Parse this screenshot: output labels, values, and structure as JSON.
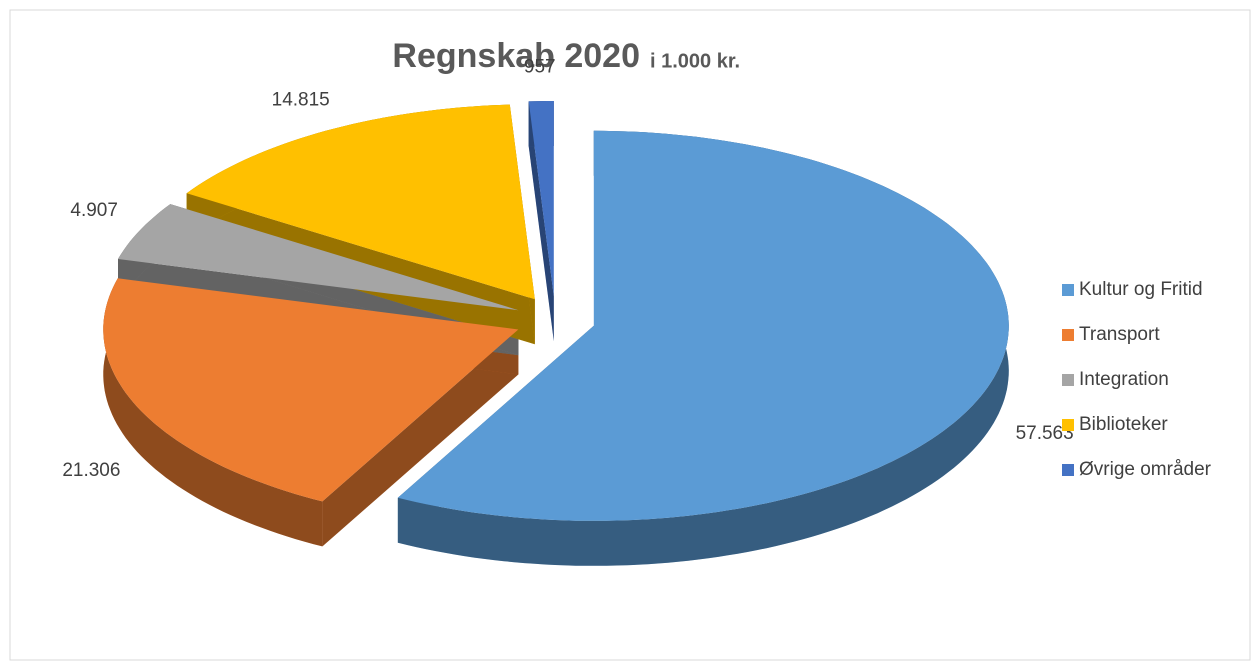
{
  "chart_data": {
    "type": "pie3d",
    "title": "Regnskab 2020",
    "subtitle": "i 1.000 kr.",
    "categories": [
      "Kultur og Fritid",
      "Transport",
      "Integration",
      "Biblioteker",
      "Øvrige områder"
    ],
    "values": [
      57563,
      21306,
      4907,
      14815,
      957
    ],
    "value_labels": [
      "57.563",
      "21.306",
      "4.907",
      "14.815",
      "957"
    ],
    "colors": [
      "#5b9bd5",
      "#ed7d31",
      "#a5a5a5",
      "#ffc000",
      "#4472c4"
    ],
    "legend": "right"
  }
}
